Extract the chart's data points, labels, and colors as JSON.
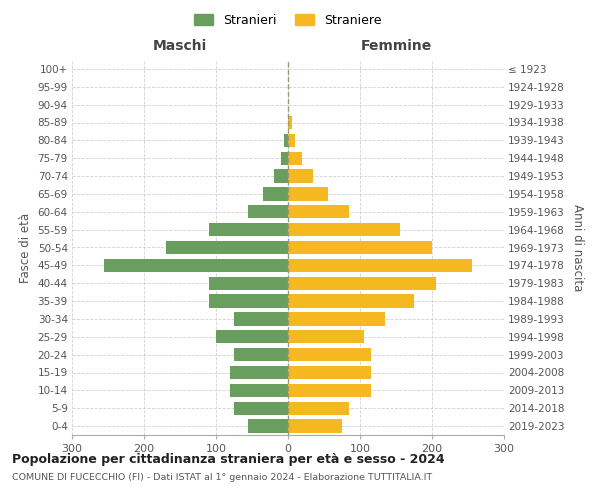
{
  "age_groups": [
    "0-4",
    "5-9",
    "10-14",
    "15-19",
    "20-24",
    "25-29",
    "30-34",
    "35-39",
    "40-44",
    "45-49",
    "50-54",
    "55-59",
    "60-64",
    "65-69",
    "70-74",
    "75-79",
    "80-84",
    "85-89",
    "90-94",
    "95-99",
    "100+"
  ],
  "birth_years": [
    "2019-2023",
    "2014-2018",
    "2009-2013",
    "2004-2008",
    "1999-2003",
    "1994-1998",
    "1989-1993",
    "1984-1988",
    "1979-1983",
    "1974-1978",
    "1969-1973",
    "1964-1968",
    "1959-1963",
    "1954-1958",
    "1949-1953",
    "1944-1948",
    "1939-1943",
    "1934-1938",
    "1929-1933",
    "1924-1928",
    "≤ 1923"
  ],
  "maschi": [
    55,
    75,
    80,
    80,
    75,
    100,
    75,
    110,
    110,
    255,
    170,
    110,
    55,
    35,
    20,
    10,
    5,
    0,
    0,
    0,
    0
  ],
  "femmine": [
    75,
    85,
    115,
    115,
    115,
    105,
    135,
    175,
    205,
    255,
    200,
    155,
    85,
    55,
    35,
    20,
    10,
    5,
    0,
    0,
    0
  ],
  "color_maschi": "#6a9e5e",
  "color_femmine": "#f5b820",
  "title": "Popolazione per cittadinanza straniera per età e sesso - 2024",
  "subtitle": "COMUNE DI FUCECCHIO (FI) - Dati ISTAT al 1° gennaio 2024 - Elaborazione TUTTITALIA.IT",
  "legend_maschi": "Stranieri",
  "legend_femmine": "Straniere",
  "label_maschi": "Maschi",
  "label_femmine": "Femmine",
  "ylabel_left": "Fasce di età",
  "ylabel_right": "Anni di nascita",
  "xlim": 300,
  "background_color": "#ffffff",
  "grid_color": "#cccccc"
}
